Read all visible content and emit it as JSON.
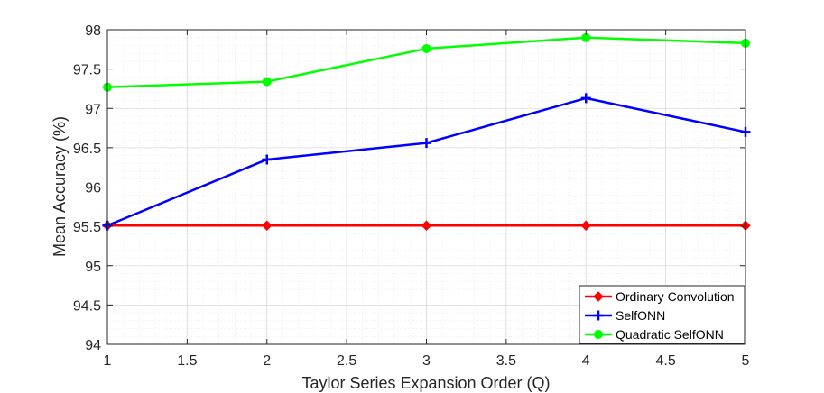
{
  "chart_data": {
    "type": "line",
    "xlabel": "Taylor Series Expansion Order (Q)",
    "ylabel": "Mean Accuracy (%)",
    "xlim": [
      1,
      5
    ],
    "ylim": [
      94,
      98
    ],
    "x_ticks": [
      1,
      1.5,
      2,
      2.5,
      3,
      3.5,
      4,
      4.5,
      5
    ],
    "x_tick_labels": [
      "1",
      "1.5",
      "2",
      "2.5",
      "3",
      "3.5",
      "4",
      "4.5",
      "5"
    ],
    "y_ticks": [
      94,
      94.5,
      95,
      95.5,
      96,
      96.5,
      97,
      97.5,
      98
    ],
    "y_tick_labels": [
      "94",
      "94.5",
      "95",
      "95.5",
      "96",
      "96.5",
      "97",
      "97.5",
      "98"
    ],
    "grid": true,
    "minor_grid": true,
    "legend_position": "bottom-right",
    "x": [
      1,
      2,
      3,
      4,
      5
    ],
    "series": [
      {
        "name": "Ordinary Convolution",
        "values": [
          95.51,
          95.51,
          95.51,
          95.51,
          95.51
        ],
        "color": "#ff0000",
        "marker": "diamond"
      },
      {
        "name": "SelfONN",
        "values": [
          95.51,
          96.35,
          96.56,
          97.13,
          96.7
        ],
        "color": "#0000ff",
        "marker": "plus"
      },
      {
        "name": "Quadratic SelfONN",
        "values": [
          97.27,
          97.34,
          97.76,
          97.9,
          97.83
        ],
        "color": "#00ff00",
        "marker": "circle"
      }
    ]
  }
}
